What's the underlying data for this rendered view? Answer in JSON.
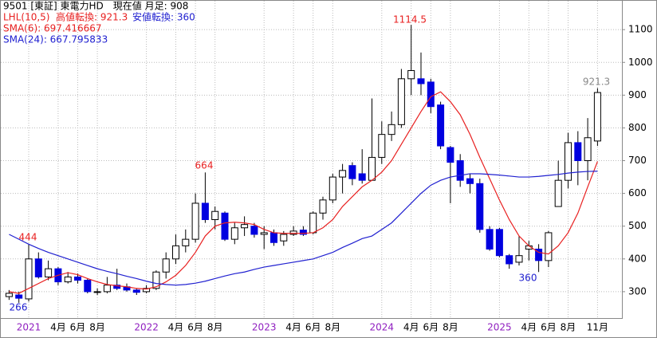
{
  "chart_data": {
    "type": "candlestick",
    "header": {
      "symbol": "9501 [東証] 東電力HD　現在値 月足: 908",
      "lhl": "LHL(10,5)",
      "high_turn": "高値転換: 921.3",
      "low_turn": "安値転換: 360",
      "sma6": "SMA(6): 697.416667",
      "sma24": "SMA(24): 667.795833"
    },
    "categories": [
      null,
      null,
      "2021",
      null,
      null,
      "4月",
      null,
      "6月",
      null,
      "8月",
      null,
      null,
      null,
      null,
      "2022",
      null,
      null,
      "4月",
      null,
      "6月",
      null,
      "8月",
      null,
      null,
      null,
      null,
      "2023",
      null,
      null,
      "4月",
      null,
      "6月",
      null,
      "8月",
      null,
      null,
      null,
      null,
      "2024",
      null,
      null,
      "4月",
      null,
      "6月",
      null,
      "8月",
      null,
      null,
      null,
      null,
      "2025",
      null,
      null,
      "4月",
      null,
      "6月",
      null,
      "8月",
      null,
      null,
      "11月"
    ],
    "open": [
      285,
      290,
      278,
      400,
      345,
      370,
      330,
      345,
      335,
      300,
      300,
      320,
      315,
      305,
      300,
      310,
      360,
      400,
      440,
      460,
      570,
      520,
      540,
      460,
      495,
      500,
      475,
      480,
      455,
      475,
      488,
      480,
      540,
      580,
      650,
      685,
      660,
      640,
      710,
      780,
      810,
      950,
      950,
      940,
      870,
      740,
      700,
      645,
      630,
      490,
      490,
      410,
      390,
      430,
      430,
      395,
      560,
      640,
      755,
      700,
      760
    ],
    "high": [
      305,
      300,
      444,
      420,
      395,
      375,
      360,
      355,
      340,
      310,
      345,
      370,
      325,
      310,
      320,
      365,
      420,
      475,
      490,
      600,
      664,
      560,
      545,
      510,
      530,
      510,
      500,
      490,
      485,
      500,
      500,
      545,
      590,
      660,
      690,
      695,
      735,
      890,
      820,
      850,
      980,
      1114.5,
      1030,
      950,
      880,
      745,
      720,
      660,
      645,
      500,
      495,
      415,
      470,
      455,
      445,
      485,
      700,
      785,
      790,
      830,
      921.3
    ],
    "low": [
      275,
      266,
      270,
      340,
      335,
      320,
      325,
      325,
      295,
      290,
      295,
      305,
      300,
      290,
      295,
      305,
      340,
      385,
      420,
      450,
      510,
      490,
      455,
      445,
      470,
      465,
      430,
      440,
      440,
      470,
      470,
      475,
      520,
      570,
      600,
      625,
      630,
      640,
      690,
      760,
      800,
      900,
      900,
      845,
      735,
      570,
      620,
      600,
      480,
      425,
      405,
      370,
      380,
      395,
      360,
      375,
      560,
      615,
      625,
      640,
      745
    ],
    "close": [
      295,
      280,
      400,
      345,
      370,
      330,
      345,
      335,
      300,
      300,
      320,
      310,
      305,
      298,
      310,
      360,
      400,
      440,
      460,
      570,
      520,
      545,
      460,
      495,
      505,
      475,
      480,
      450,
      475,
      485,
      475,
      540,
      580,
      650,
      670,
      645,
      640,
      710,
      780,
      810,
      950,
      975,
      935,
      865,
      745,
      695,
      640,
      630,
      490,
      430,
      410,
      385,
      410,
      440,
      395,
      480,
      640,
      755,
      700,
      770,
      908
    ],
    "series": [
      {
        "name": "SMA(6)",
        "color": "#e82020",
        "values": [
          300,
          295,
          310,
          325,
          340,
          350,
          358,
          352,
          340,
          330,
          322,
          318,
          315,
          310,
          308,
          315,
          330,
          350,
          380,
          420,
          470,
          500,
          510,
          512,
          510,
          505,
          490,
          480,
          478,
          478,
          478,
          480,
          495,
          520,
          560,
          590,
          620,
          640,
          665,
          700,
          750,
          800,
          850,
          895,
          910,
          880,
          840,
          780,
          710,
          645,
          580,
          520,
          470,
          440,
          420,
          415,
          440,
          480,
          540,
          620,
          697.416667
        ]
      },
      {
        "name": "SMA(24)",
        "color": "#2020d0",
        "values": [
          475,
          460,
          445,
          432,
          420,
          410,
          400,
          390,
          380,
          370,
          362,
          355,
          347,
          340,
          332,
          325,
          322,
          320,
          322,
          326,
          332,
          340,
          348,
          355,
          360,
          368,
          375,
          380,
          385,
          390,
          395,
          400,
          410,
          420,
          435,
          448,
          462,
          470,
          490,
          510,
          540,
          570,
          600,
          625,
          640,
          650,
          655,
          660,
          660,
          658,
          656,
          653,
          650,
          650,
          652,
          655,
          658,
          662,
          665,
          667,
          667.795833
        ]
      }
    ],
    "annotations": [
      {
        "text": "444",
        "color": "#e82020"
      },
      {
        "text": "266",
        "color": "#2020d0"
      },
      {
        "text": "664",
        "color": "#e82020"
      },
      {
        "text": "1114.5",
        "color": "#e82020"
      },
      {
        "text": "360",
        "color": "#2020d0"
      },
      {
        "text": "921.3",
        "color": "#888888"
      }
    ],
    "up_color": "#ffffff",
    "down_color": "#0000e0",
    "year_color": "#9020c0",
    "ylim": [
      217,
      1188
    ],
    "yticks": [
      300,
      400,
      500,
      600,
      700,
      800,
      900,
      1000,
      1100
    ],
    "grid": true
  }
}
